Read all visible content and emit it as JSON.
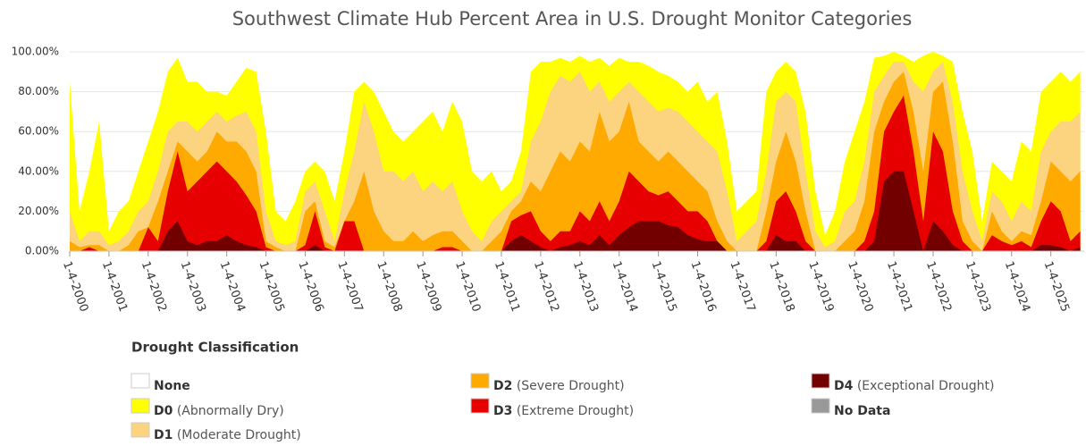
{
  "chart_data": {
    "type": "area",
    "title": "Southwest Climate Hub Percent Area in U.S. Drought Monitor Categories",
    "x": [
      2000,
      2000.25,
      2000.5,
      2000.75,
      2001,
      2001.25,
      2001.5,
      2001.75,
      2002,
      2002.25,
      2002.5,
      2002.75,
      2003,
      2003.25,
      2003.5,
      2003.75,
      2004,
      2004.25,
      2004.5,
      2004.75,
      2005,
      2005.25,
      2005.5,
      2005.75,
      2006,
      2006.25,
      2006.5,
      2006.75,
      2007,
      2007.25,
      2007.5,
      2007.75,
      2008,
      2008.25,
      2008.5,
      2008.75,
      2009,
      2009.25,
      2009.5,
      2009.75,
      2010,
      2010.25,
      2010.5,
      2010.75,
      2011,
      2011.25,
      2011.5,
      2011.75,
      2012,
      2012.25,
      2012.5,
      2012.75,
      2013,
      2013.25,
      2013.5,
      2013.75,
      2014,
      2014.25,
      2014.5,
      2014.75,
      2015,
      2015.25,
      2015.5,
      2015.75,
      2016,
      2016.25,
      2016.5,
      2016.75,
      2017,
      2017.25,
      2017.5,
      2017.75,
      2018,
      2018.25,
      2018.5,
      2018.75,
      2019,
      2019.25,
      2019.5,
      2019.75,
      2020,
      2020.25,
      2020.5,
      2020.75,
      2021,
      2021.25,
      2021.5,
      2021.75,
      2022,
      2022.25,
      2022.5,
      2022.75,
      2023,
      2023.25,
      2023.5,
      2023.75,
      2024,
      2024.25,
      2024.5,
      2024.75,
      2025,
      2025.25,
      2025.5,
      2025.75
    ],
    "xlim": [
      2000,
      2025.85
    ],
    "xticks": [
      {
        "value": 2000,
        "label": "1-4-2000"
      },
      {
        "value": 2001,
        "label": "1-4-2001"
      },
      {
        "value": 2002,
        "label": "1-4-2002"
      },
      {
        "value": 2003,
        "label": "1-4-2003"
      },
      {
        "value": 2004,
        "label": "1-4-2004"
      },
      {
        "value": 2005,
        "label": "1-4-2005"
      },
      {
        "value": 2006,
        "label": "1-4-2006"
      },
      {
        "value": 2007,
        "label": "1-4-2007"
      },
      {
        "value": 2008,
        "label": "1-4-2008"
      },
      {
        "value": 2009,
        "label": "1-4-2009"
      },
      {
        "value": 2010,
        "label": "1-4-2010"
      },
      {
        "value": 2011,
        "label": "1-4-2011"
      },
      {
        "value": 2012,
        "label": "1-4-2012"
      },
      {
        "value": 2013,
        "label": "1-4-2013"
      },
      {
        "value": 2014,
        "label": "1-4-2014"
      },
      {
        "value": 2015,
        "label": "1-4-2015"
      },
      {
        "value": 2016,
        "label": "1-4-2016"
      },
      {
        "value": 2017,
        "label": "1-4-2017"
      },
      {
        "value": 2018,
        "label": "1-4-2018"
      },
      {
        "value": 2019,
        "label": "1-4-2019"
      },
      {
        "value": 2020,
        "label": "1-4-2020"
      },
      {
        "value": 2021,
        "label": "1-4-2021"
      },
      {
        "value": 2022,
        "label": "1-4-2022"
      },
      {
        "value": 2023,
        "label": "1-4-2023"
      },
      {
        "value": 2024,
        "label": "1-4-2024"
      },
      {
        "value": 2025,
        "label": "1-4-2025"
      }
    ],
    "ylim": [
      0,
      100
    ],
    "yticks": [
      {
        "value": 0,
        "label": "0.00%"
      },
      {
        "value": 20,
        "label": "20.00%"
      },
      {
        "value": 40,
        "label": "40.00%"
      },
      {
        "value": 60,
        "label": "60.00%"
      },
      {
        "value": 80,
        "label": "80.00%"
      },
      {
        "value": 100,
        "label": "100.00%"
      }
    ],
    "grid": true,
    "legend_title": "Drought Classification",
    "legend_extra": [
      {
        "name": "None",
        "color": "#ffffff"
      },
      {
        "name": "No Data",
        "color": "#999999"
      }
    ],
    "series": [
      {
        "name": "D0",
        "description": "(Abnormally Dry)",
        "color": "#ffff00",
        "values": [
          85,
          20,
          40,
          65,
          10,
          20,
          25,
          40,
          55,
          70,
          90,
          97,
          85,
          85,
          80,
          80,
          78,
          85,
          92,
          90,
          60,
          20,
          15,
          25,
          40,
          45,
          40,
          25,
          50,
          80,
          85,
          80,
          70,
          60,
          55,
          60,
          65,
          70,
          60,
          75,
          65,
          40,
          35,
          40,
          30,
          35,
          50,
          90,
          95,
          95,
          97,
          95,
          98,
          95,
          97,
          93,
          97,
          95,
          95,
          93,
          90,
          88,
          85,
          80,
          85,
          75,
          80,
          55,
          20,
          25,
          30,
          80,
          90,
          95,
          90,
          70,
          30,
          8,
          20,
          45,
          60,
          75,
          97,
          98,
          100,
          98,
          95,
          98,
          100,
          98,
          95,
          70,
          50,
          15,
          45,
          40,
          35,
          55,
          50,
          80,
          85,
          90,
          85,
          90
        ]
      },
      {
        "name": "D1",
        "description": "(Moderate Drought)",
        "color": "#fcd37f",
        "values": [
          20,
          5,
          10,
          10,
          3,
          5,
          10,
          20,
          25,
          40,
          60,
          65,
          65,
          60,
          65,
          70,
          65,
          68,
          70,
          60,
          20,
          5,
          3,
          5,
          30,
          35,
          20,
          5,
          30,
          50,
          75,
          60,
          40,
          40,
          35,
          40,
          30,
          35,
          30,
          35,
          20,
          10,
          5,
          15,
          20,
          25,
          30,
          55,
          65,
          80,
          88,
          85,
          90,
          80,
          85,
          75,
          80,
          85,
          80,
          75,
          70,
          72,
          70,
          65,
          60,
          55,
          50,
          30,
          5,
          10,
          15,
          40,
          75,
          80,
          75,
          40,
          10,
          2,
          5,
          20,
          25,
          45,
          80,
          88,
          95,
          95,
          85,
          80,
          90,
          95,
          75,
          40,
          20,
          5,
          30,
          25,
          15,
          25,
          20,
          50,
          60,
          65,
          65,
          70
        ]
      },
      {
        "name": "D2",
        "description": "(Severe Drought)",
        "color": "#ffaa00",
        "values": [
          5,
          2,
          3,
          3,
          0,
          0,
          3,
          10,
          12,
          25,
          40,
          55,
          50,
          45,
          50,
          60,
          55,
          55,
          50,
          40,
          5,
          2,
          0,
          0,
          20,
          25,
          5,
          2,
          15,
          25,
          40,
          20,
          10,
          5,
          5,
          10,
          5,
          8,
          10,
          10,
          5,
          0,
          0,
          5,
          10,
          20,
          25,
          35,
          30,
          40,
          50,
          45,
          55,
          50,
          70,
          55,
          60,
          75,
          55,
          50,
          45,
          50,
          45,
          40,
          35,
          30,
          15,
          5,
          0,
          0,
          0,
          20,
          45,
          60,
          45,
          20,
          0,
          0,
          0,
          5,
          10,
          25,
          60,
          75,
          85,
          90,
          70,
          40,
          80,
          85,
          55,
          15,
          5,
          0,
          20,
          10,
          5,
          10,
          8,
          25,
          45,
          40,
          35,
          40
        ]
      },
      {
        "name": "D3",
        "description": "(Extreme Drought)",
        "color": "#e60000",
        "values": [
          0,
          0,
          2,
          0,
          0,
          0,
          0,
          0,
          12,
          5,
          30,
          50,
          30,
          35,
          40,
          45,
          40,
          35,
          28,
          20,
          2,
          0,
          0,
          0,
          3,
          20,
          2,
          0,
          15,
          15,
          0,
          0,
          0,
          0,
          0,
          0,
          0,
          0,
          2,
          2,
          0,
          0,
          0,
          0,
          0,
          15,
          18,
          20,
          10,
          5,
          10,
          10,
          20,
          15,
          25,
          15,
          25,
          40,
          35,
          30,
          28,
          30,
          25,
          20,
          20,
          15,
          5,
          0,
          0,
          0,
          0,
          5,
          25,
          30,
          20,
          5,
          0,
          0,
          0,
          0,
          0,
          5,
          20,
          60,
          70,
          78,
          50,
          15,
          60,
          50,
          20,
          5,
          0,
          0,
          8,
          5,
          3,
          5,
          2,
          15,
          25,
          20,
          5,
          10
        ]
      },
      {
        "name": "D4",
        "description": "(Exceptional Drought)",
        "color": "#730000",
        "values": [
          0,
          0,
          0,
          0,
          0,
          0,
          0,
          0,
          0,
          0,
          10,
          15,
          5,
          3,
          5,
          5,
          8,
          5,
          3,
          2,
          0,
          0,
          0,
          0,
          0,
          3,
          0,
          0,
          0,
          0,
          0,
          0,
          0,
          0,
          0,
          0,
          0,
          0,
          0,
          0,
          0,
          0,
          0,
          0,
          0,
          5,
          8,
          5,
          2,
          0,
          2,
          3,
          5,
          3,
          8,
          3,
          8,
          12,
          15,
          15,
          15,
          13,
          12,
          8,
          6,
          5,
          5,
          0,
          0,
          0,
          0,
          0,
          8,
          5,
          5,
          0,
          0,
          0,
          0,
          0,
          0,
          0,
          5,
          35,
          40,
          40,
          20,
          0,
          15,
          10,
          3,
          0,
          0,
          0,
          0,
          0,
          0,
          0,
          0,
          3,
          3,
          2,
          0,
          2
        ]
      }
    ]
  }
}
